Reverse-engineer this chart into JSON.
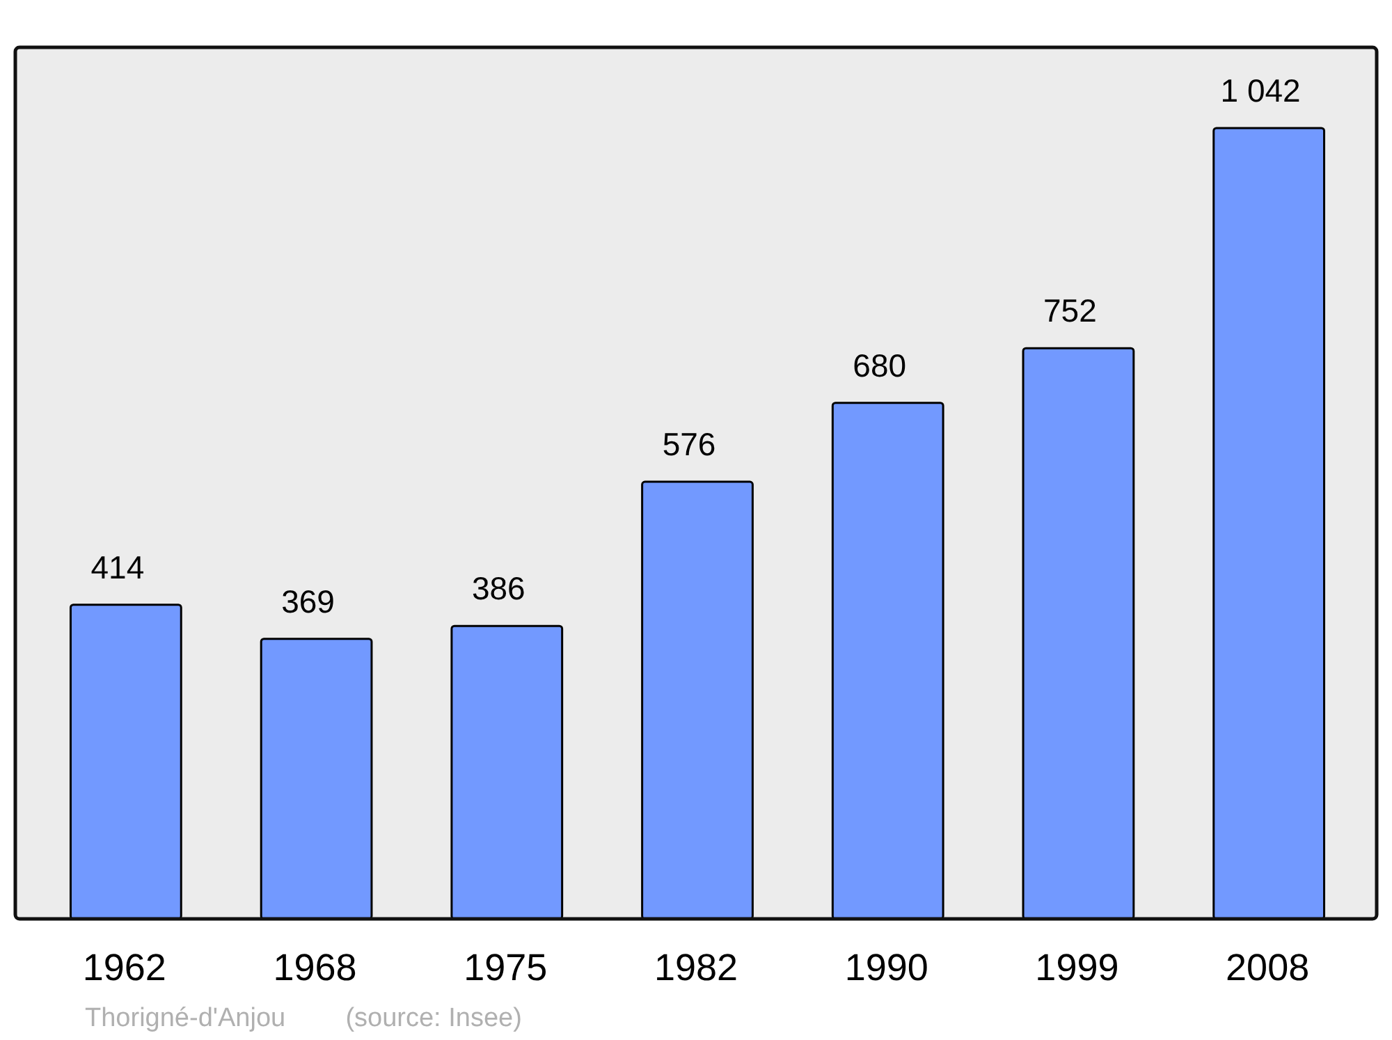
{
  "chart_data": {
    "type": "bar",
    "categories": [
      "1962",
      "1968",
      "1975",
      "1982",
      "1990",
      "1999",
      "2008"
    ],
    "values": [
      414,
      369,
      386,
      576,
      680,
      752,
      1042
    ],
    "value_labels": [
      "414",
      "369",
      "386",
      "576",
      "680",
      "752",
      "1 042"
    ],
    "color": "#7299ff",
    "annotations": [
      "Thorigné-d'Anjou",
      "(source: Insee)"
    ]
  }
}
